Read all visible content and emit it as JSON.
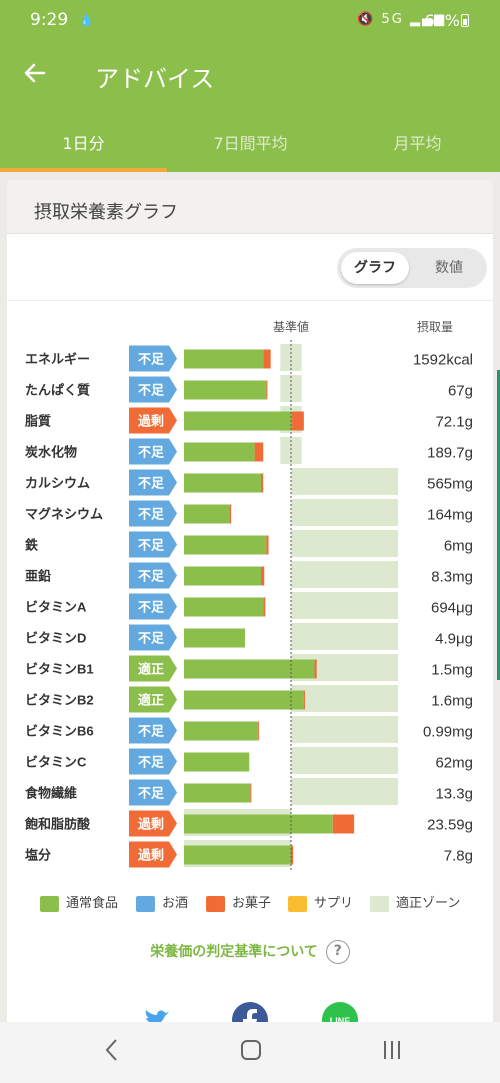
{
  "status": {
    "time": "9:29",
    "network": "5G",
    "battery": "66%"
  },
  "appbar": {
    "title": "アドバイス"
  },
  "tabs": [
    {
      "label": "1日分",
      "active": true
    },
    {
      "label": "7日間平均",
      "active": false
    },
    {
      "label": "月平均",
      "active": false
    }
  ],
  "card": {
    "title": "摂取栄養素グラフ",
    "view_toggle": {
      "graph": "グラフ",
      "numbers": "数値",
      "selected": "グラフ"
    }
  },
  "colors": {
    "normal_food": "#8cbe4b",
    "alcohol": "#63a9df",
    "snacks": "#f06b35",
    "supplement": "#fbbc2f",
    "proper_zone": "#dde9cf",
    "badge_deficient": "#63a9df",
    "badge_proper": "#8cbe4b",
    "badge_excess": "#f06b35"
  },
  "chart_data": {
    "type": "bar",
    "orientation": "horizontal",
    "stacked": true,
    "header_left": "基準値",
    "header_right": "摂取量",
    "reference_line": 100,
    "unit": "% of 基準値",
    "series": [
      {
        "name": "通常食品"
      },
      {
        "name": "お酒"
      },
      {
        "name": "お菓子"
      },
      {
        "name": "サプリ"
      }
    ],
    "rows": [
      {
        "name": "エネルギー",
        "status": "不足",
        "normal": 74,
        "snack": 7,
        "zone": [
          90,
          110
        ],
        "intake": "1592kcal"
      },
      {
        "name": "たんぱく質",
        "status": "不足",
        "normal": 77,
        "snack": 1,
        "zone": [
          90,
          110
        ],
        "intake": "67g"
      },
      {
        "name": "脂質",
        "status": "過剰",
        "normal": 101,
        "snack": 11,
        "zone": [
          90,
          110
        ],
        "intake": "72.1g"
      },
      {
        "name": "炭水化物",
        "status": "不足",
        "normal": 66,
        "snack": 8,
        "zone": [
          90,
          110
        ],
        "intake": "189.7g"
      },
      {
        "name": "カルシウム",
        "status": "不足",
        "normal": 72,
        "snack": 2,
        "zone": [
          100,
          200
        ],
        "intake": "565mg"
      },
      {
        "name": "マグネシウム",
        "status": "不足",
        "normal": 43,
        "snack": 1,
        "zone": [
          100,
          200
        ],
        "intake": "164mg"
      },
      {
        "name": "鉄",
        "status": "不足",
        "normal": 77,
        "snack": 2,
        "zone": [
          100,
          200
        ],
        "intake": "6mg"
      },
      {
        "name": "亜鉛",
        "status": "不足",
        "normal": 72,
        "snack": 3,
        "zone": [
          100,
          200
        ],
        "intake": "8.3mg"
      },
      {
        "name": "ビタミンA",
        "status": "不足",
        "normal": 74,
        "snack": 2,
        "zone": [
          100,
          200
        ],
        "intake": "694μg"
      },
      {
        "name": "ビタミンD",
        "status": "不足",
        "normal": 57,
        "snack": 0,
        "zone": [
          100,
          200
        ],
        "intake": "4.9μg"
      },
      {
        "name": "ビタミンB1",
        "status": "適正",
        "normal": 122,
        "snack": 2,
        "zone": [
          100,
          200
        ],
        "intake": "1.5mg"
      },
      {
        "name": "ビタミンB2",
        "status": "適正",
        "normal": 112,
        "snack": 1,
        "zone": [
          100,
          200
        ],
        "intake": "1.6mg"
      },
      {
        "name": "ビタミンB6",
        "status": "不足",
        "normal": 69,
        "snack": 1,
        "zone": [
          100,
          200
        ],
        "intake": "0.99mg"
      },
      {
        "name": "ビタミンC",
        "status": "不足",
        "normal": 61,
        "snack": 0,
        "zone": [
          100,
          200
        ],
        "intake": "62mg"
      },
      {
        "name": "食物繊維",
        "status": "不足",
        "normal": 62,
        "snack": 1,
        "zone": [
          100,
          200
        ],
        "intake": "13.3g"
      },
      {
        "name": "飽和脂肪酸",
        "status": "過剰",
        "normal": 139,
        "snack": 20,
        "zone": [
          0,
          100
        ],
        "intake": "23.59g"
      },
      {
        "name": "塩分",
        "status": "過剰",
        "normal": 100,
        "snack": 2,
        "zone": [
          0,
          100
        ],
        "intake": "7.8g"
      }
    ]
  },
  "legend": [
    {
      "label": "通常食品",
      "color": "#8cbe4b"
    },
    {
      "label": "お酒",
      "color": "#63a9df"
    },
    {
      "label": "お菓子",
      "color": "#f06b35"
    },
    {
      "label": "サプリ",
      "color": "#fbbc2f"
    },
    {
      "label": "適正ゾーン",
      "color": "#dde9cf"
    }
  ],
  "criteria_link": "栄養価の判定基準について",
  "share": [
    {
      "icon": "twitter-icon",
      "color": "#4aa3ec"
    },
    {
      "icon": "facebook-icon",
      "color": "#3c5a99"
    },
    {
      "icon": "line-icon",
      "color": "#2dc24b"
    }
  ]
}
